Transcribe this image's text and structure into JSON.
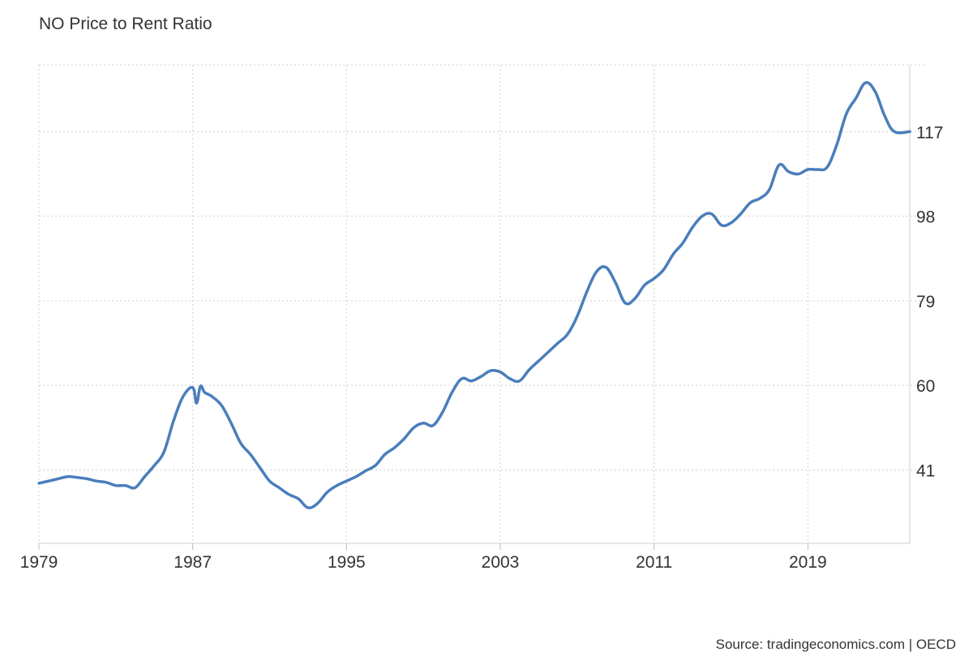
{
  "chart_data": {
    "type": "line",
    "title": "NO Price to Rent Ratio",
    "source": "Source: tradingeconomics.com | OECD",
    "xlabel": "",
    "ylabel": "",
    "x_ticks": [
      "1979",
      "1987",
      "1995",
      "2003",
      "2011",
      "2019"
    ],
    "y_ticks": [
      41,
      60,
      79,
      98,
      117
    ],
    "ylim": [
      24.5,
      132
    ],
    "y_axis_position": "right",
    "grid": true,
    "line_color": "#4a7ebb",
    "series": [
      {
        "x": [
          1979.0,
          1979.5,
          1980.0,
          1980.5,
          1981.0,
          1981.5,
          1982.0,
          1982.5,
          1983.0,
          1983.5,
          1984.0,
          1984.5,
          1985.0,
          1985.5,
          1986.0,
          1986.5,
          1987.0,
          1987.2,
          1987.4,
          1987.6,
          1987.8,
          1988.0,
          1988.5,
          1989.0,
          1989.5,
          1990.0,
          1990.5,
          1991.0,
          1991.5,
          1992.0,
          1992.5,
          1993.0,
          1993.5,
          1994.0,
          1994.5,
          1995.0,
          1995.5,
          1996.0,
          1996.5,
          1997.0,
          1997.5,
          1998.0,
          1998.5,
          1999.0,
          1999.5,
          2000.0,
          2000.5,
          2001.0,
          2001.5,
          2002.0,
          2002.5,
          2003.0,
          2003.5,
          2004.0,
          2004.5,
          2005.0,
          2005.5,
          2006.0,
          2006.5,
          2007.0,
          2007.5,
          2008.0,
          2008.5,
          2009.0,
          2009.5,
          2010.0,
          2010.5,
          2011.0,
          2011.5,
          2012.0,
          2012.5,
          2013.0,
          2013.5,
          2014.0,
          2014.5,
          2015.0,
          2015.5,
          2016.0,
          2016.5,
          2017.0,
          2017.5,
          2018.0,
          2018.5,
          2019.0,
          2019.5,
          2020.0,
          2020.5,
          2021.0,
          2021.5,
          2022.0,
          2022.5,
          2023.0,
          2023.5,
          2024.3
        ],
        "y": [
          38.0,
          38.5,
          39.0,
          39.5,
          39.3,
          39.0,
          38.5,
          38.2,
          37.5,
          37.5,
          37.0,
          39.5,
          42.0,
          45.0,
          52.0,
          57.5,
          59.5,
          56.0,
          59.8,
          58.5,
          58.0,
          57.5,
          55.5,
          51.5,
          47.0,
          44.5,
          41.5,
          38.5,
          37.0,
          35.5,
          34.5,
          32.5,
          33.5,
          36.0,
          37.5,
          38.5,
          39.5,
          40.8,
          42.0,
          44.5,
          46.0,
          48.0,
          50.5,
          51.5,
          51.0,
          54.0,
          58.5,
          61.5,
          61.0,
          62.0,
          63.3,
          63.0,
          61.5,
          61.0,
          63.5,
          65.5,
          67.5,
          69.5,
          71.5,
          75.5,
          81.0,
          85.5,
          86.5,
          83.0,
          78.5,
          79.5,
          82.5,
          84.0,
          86.0,
          89.5,
          92.0,
          95.5,
          98.0,
          98.5,
          96.0,
          96.5,
          98.5,
          101.0,
          102.0,
          104.0,
          109.5,
          108.0,
          107.5,
          108.5,
          108.5,
          109.0,
          114.0,
          121.0,
          124.5,
          128.0,
          126.0,
          120.5,
          117.0,
          117.0
        ]
      }
    ]
  }
}
